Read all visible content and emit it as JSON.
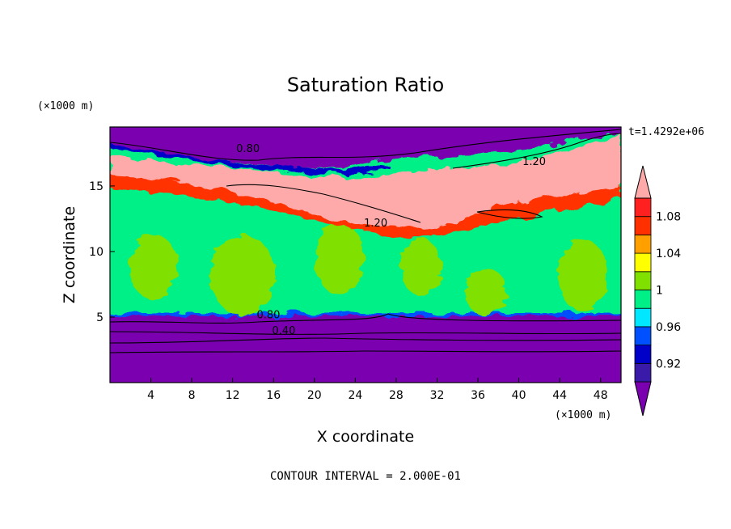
{
  "chart_data": {
    "type": "heatmap",
    "title": "Saturation Ratio",
    "xlabel": "X coordinate",
    "ylabel": "Z coordinate",
    "x_unit_label": "(×1000 m)",
    "y_unit_label": "(×1000 m)",
    "time_label": "t=1.4292e+06",
    "footer": "CONTOUR INTERVAL = 2.000E-01",
    "xlim": [
      0,
      50
    ],
    "ylim": [
      0,
      19.5
    ],
    "x_ticks": [
      4,
      8,
      12,
      16,
      20,
      24,
      28,
      32,
      36,
      40,
      44,
      48
    ],
    "x_tick_labels": [
      "4",
      "8",
      "12",
      "16",
      "20",
      "24",
      "28",
      "32",
      "36",
      "40",
      "44",
      "48"
    ],
    "y_ticks": [
      5,
      10,
      15
    ],
    "y_tick_labels": [
      "5",
      "10",
      "15"
    ],
    "colorbar": {
      "levels": [
        0.9,
        0.92,
        0.94,
        0.96,
        0.98,
        1.0,
        1.02,
        1.04,
        1.06,
        1.08,
        1.1
      ],
      "labels": [
        "0.92",
        "0.96",
        "1",
        "1.04",
        "1.08"
      ],
      "label_values": [
        0.92,
        0.96,
        1.0,
        1.04,
        1.08
      ],
      "colors": [
        "#7a00b0",
        "#3a1aa8",
        "#0000c8",
        "#0050ff",
        "#00e8ff",
        "#00f088",
        "#80e000",
        "#ffff00",
        "#ffa000",
        "#ff3000",
        "#ff2020",
        "#ffaaaa"
      ]
    },
    "bands": [
      {
        "z_range": [
          0,
          5.2
        ],
        "value": "below 0.92"
      },
      {
        "z_range": [
          5.2,
          15
        ],
        "value": "0.98 to 1.02"
      },
      {
        "z_range": [
          12,
          16
        ],
        "value": "above 1.08 in patches"
      },
      {
        "z_range": [
          16,
          19.5
        ],
        "value": "below 0.92"
      }
    ],
    "contour_labels": [
      {
        "text": "0.80",
        "x": 13.5,
        "z": 17.6
      },
      {
        "text": "1.20",
        "x": 41.5,
        "z": 16.6
      },
      {
        "text": "1.20",
        "x": 26.0,
        "z": 11.9
      },
      {
        "text": "0.80",
        "x": 15.5,
        "z": 4.9
      },
      {
        "text": "0.40",
        "x": 17.0,
        "z": 3.7
      }
    ]
  }
}
